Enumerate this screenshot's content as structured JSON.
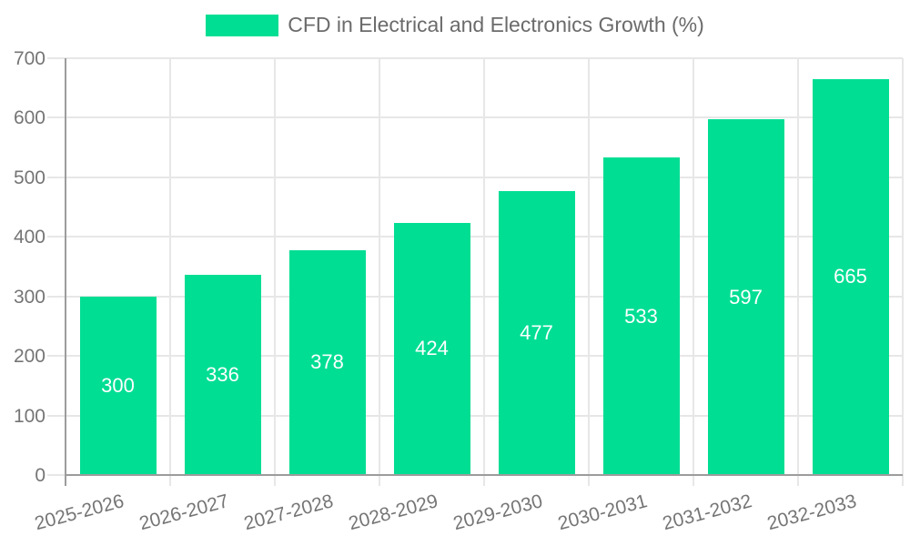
{
  "chart_data": {
    "type": "bar",
    "title": "CFD in Electrical and Electronics Growth (%)",
    "legend": {
      "label": "CFD in Electrical and Electronics Growth (%)",
      "position": "top-center"
    },
    "categories": [
      "2025-2026",
      "2026-2027",
      "2027-2028",
      "2028-2029",
      "2029-2030",
      "2030-2031",
      "2031-2032",
      "2032-2033"
    ],
    "values": [
      300,
      336,
      378,
      424,
      477,
      533,
      597,
      665
    ],
    "xlabel": "",
    "ylabel": "",
    "ylim": [
      0,
      700
    ],
    "ytick_step": 100,
    "ytick_labels": [
      "0",
      "100",
      "200",
      "300",
      "400",
      "500",
      "600",
      "700"
    ],
    "grid": true,
    "x_label_rotation_deg": -15,
    "value_labels": "centered-inside-bars",
    "colors": {
      "bar": "#00DE93",
      "bar_value_text": "#ffffff",
      "grid": "#e7e7e7",
      "axis": "#9c9c9c",
      "tick_text": "#757575",
      "legend_text": "#6b6b6b",
      "background": "#ffffff"
    }
  }
}
